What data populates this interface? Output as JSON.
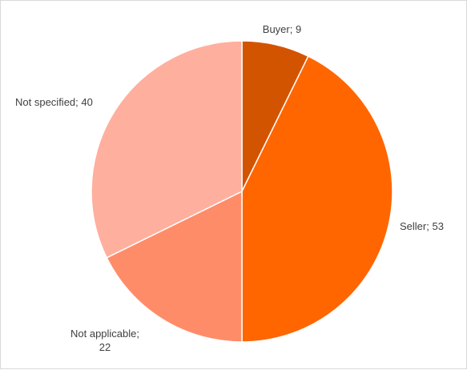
{
  "chart_data": {
    "type": "pie",
    "title": "",
    "legend": "none",
    "start_angle": "12 o'clock, clockwise",
    "slices": [
      {
        "label": "Buyer",
        "value": 9,
        "color": "#d35400",
        "data_label": [
          "Buyer; 9"
        ]
      },
      {
        "label": "Seller",
        "value": 53,
        "color": "#ff6600",
        "data_label": [
          "Seller; 53"
        ]
      },
      {
        "label": "Not applicable",
        "value": 22,
        "color": "#ff8c69",
        "data_label": [
          "Not applicable;",
          "22"
        ]
      },
      {
        "label": "Not specified",
        "value": 40,
        "color": "#ffaf9e",
        "data_label": [
          "Not specified; 40"
        ]
      }
    ]
  }
}
